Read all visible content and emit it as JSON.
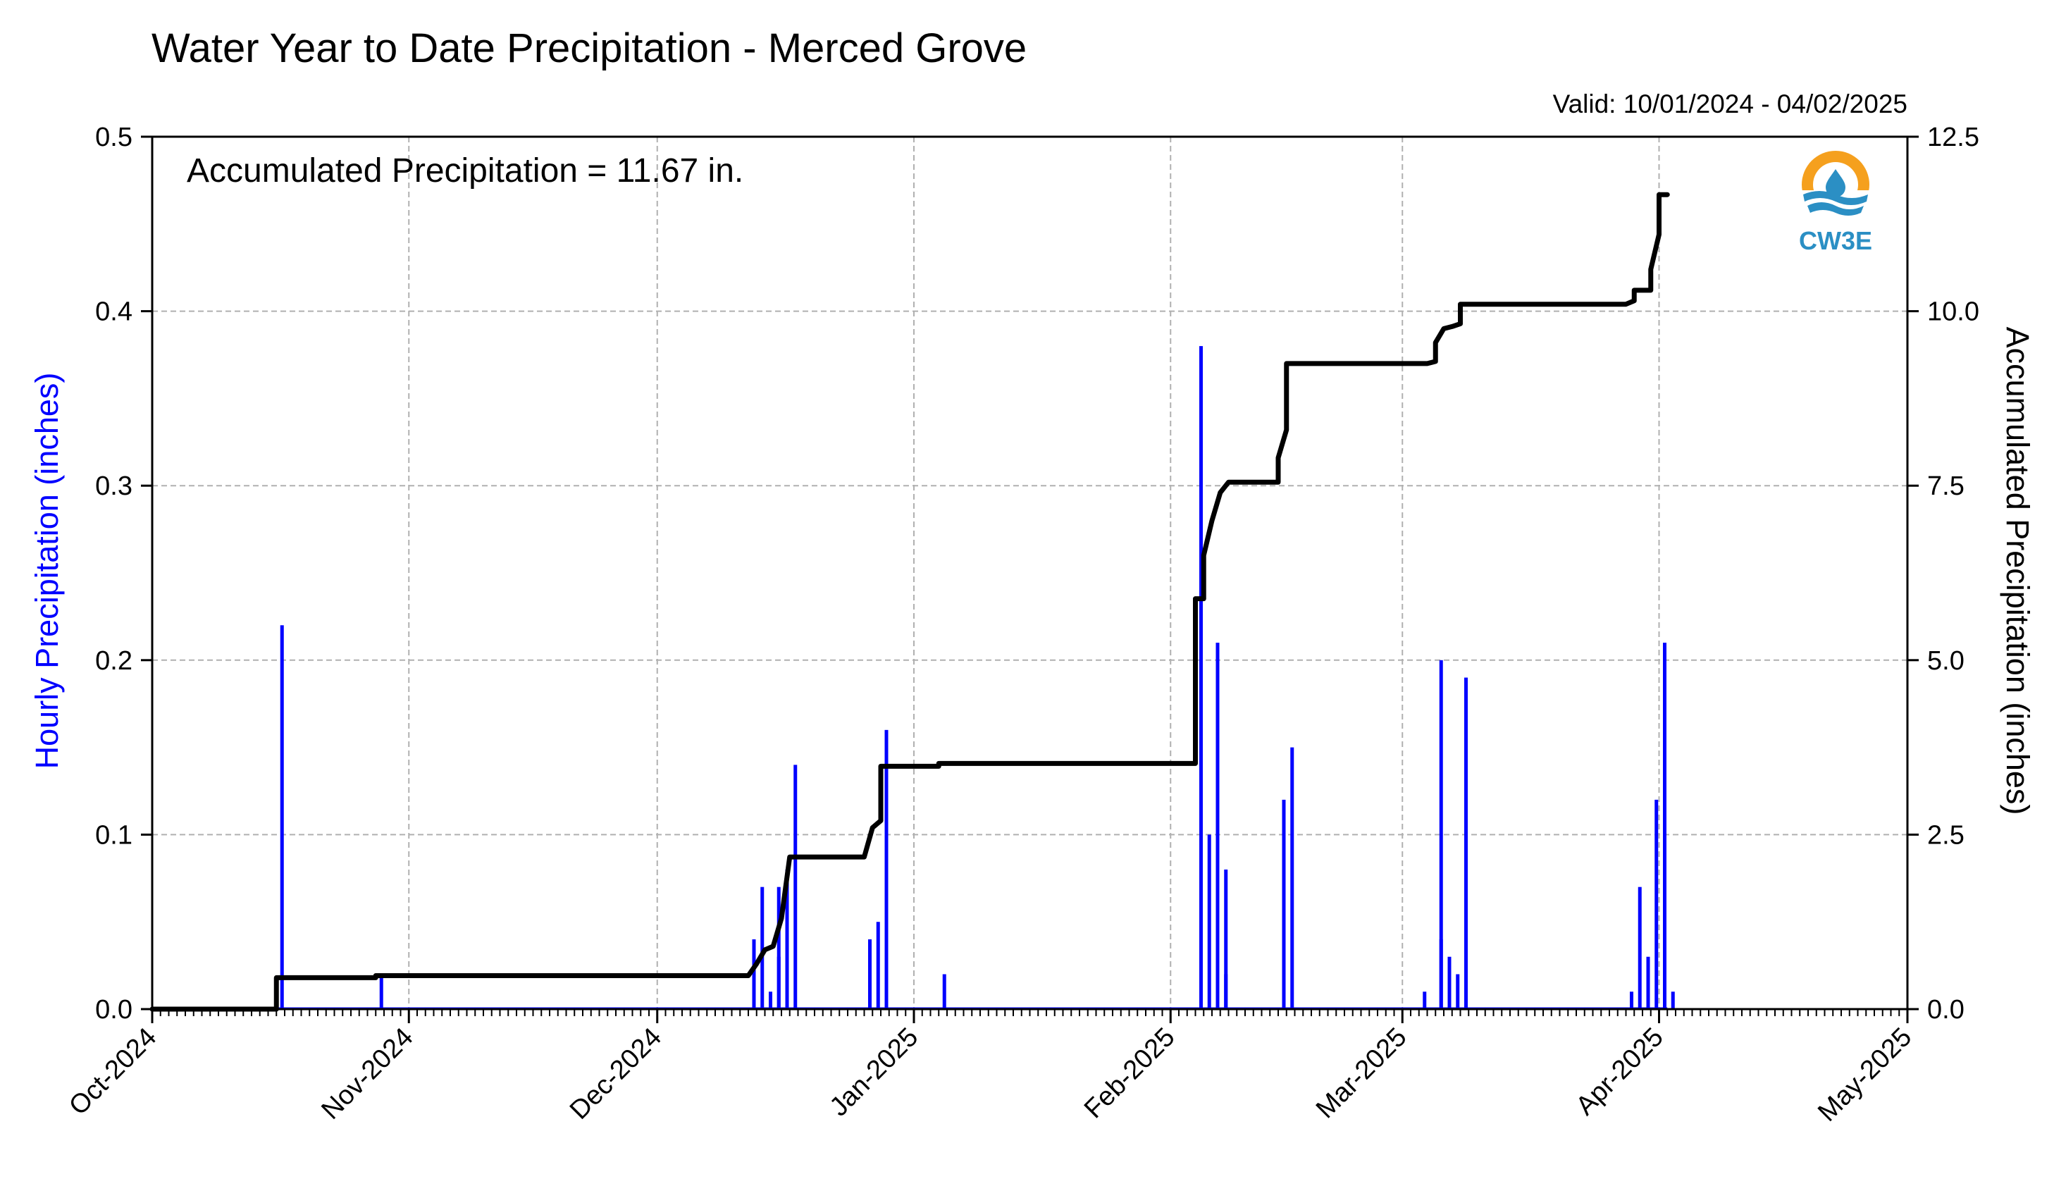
{
  "colors": {
    "hourly_bars": "#0000ff",
    "accumulated_line": "#000000",
    "grid": "#b0b0b0",
    "logo_orange": "#f5a01e",
    "logo_blue": "#2b8fc4"
  },
  "logo": {
    "text": "CW3E",
    "icon": "water-drop-logo-icon"
  },
  "chart_data": {
    "type": "bar",
    "title": "Water Year to Date Precipitation - Merced Grove",
    "subtitle": "Valid: 10/01/2024 - 04/02/2025",
    "annotation": "Accumulated Precipitation = 11.67 in.",
    "xlabel": "",
    "ylabel_left": "Hourly Precipitation (inches)",
    "ylabel_right": "Accumulated Precipitation (inches)",
    "x_domain": [
      "2024-10-01",
      "2025-05-01"
    ],
    "x_ticks": [
      "Oct-2024",
      "Nov-2024",
      "Dec-2024",
      "Jan-2025",
      "Feb-2025",
      "Mar-2025",
      "Apr-2025",
      "May-2025"
    ],
    "ylim_left": [
      0,
      0.5
    ],
    "yticks_left": [
      "0.0",
      "0.1",
      "0.2",
      "0.3",
      "0.4",
      "0.5"
    ],
    "ylim_right": [
      0,
      12.5
    ],
    "yticks_right": [
      "0.0",
      "2.5",
      "5.0",
      "7.5",
      "10.0",
      "12.5"
    ],
    "grid": true,
    "series": [
      {
        "name": "Hourly Precipitation",
        "type": "bar",
        "axis": "left",
        "points": [
          [
            "2024-10-16",
            0.22
          ],
          [
            "2024-10-28",
            0.02
          ],
          [
            "2024-12-12",
            0.04
          ],
          [
            "2024-12-13",
            0.07
          ],
          [
            "2024-12-14",
            0.01
          ],
          [
            "2024-12-15",
            0.03
          ],
          [
            "2024-12-15",
            0.07
          ],
          [
            "2024-12-16",
            0.06
          ],
          [
            "2024-12-16",
            0.08
          ],
          [
            "2024-12-17",
            0.14
          ],
          [
            "2024-12-26",
            0.04
          ],
          [
            "2024-12-27",
            0.05
          ],
          [
            "2024-12-28",
            0.06
          ],
          [
            "2024-12-28",
            0.16
          ],
          [
            "2025-01-04",
            0.02
          ],
          [
            "2025-02-04",
            0.38
          ],
          [
            "2025-02-04",
            0.31
          ],
          [
            "2025-02-05",
            0.1
          ],
          [
            "2025-02-06",
            0.17
          ],
          [
            "2025-02-06",
            0.21
          ],
          [
            "2025-02-07",
            0.02
          ],
          [
            "2025-02-07",
            0.08
          ],
          [
            "2025-02-14",
            0.12
          ],
          [
            "2025-02-15",
            0.15
          ],
          [
            "2025-03-03",
            0.01
          ],
          [
            "2025-03-05",
            0.2
          ],
          [
            "2025-03-05",
            0.04
          ],
          [
            "2025-03-06",
            0.03
          ],
          [
            "2025-03-07",
            0.02
          ],
          [
            "2025-03-08",
            0.19
          ],
          [
            "2025-03-08",
            0.09
          ],
          [
            "2025-03-28",
            0.01
          ],
          [
            "2025-03-29",
            0.07
          ],
          [
            "2025-03-30",
            0.03
          ],
          [
            "2025-03-31",
            0.12
          ],
          [
            "2025-04-01",
            0.21
          ],
          [
            "2025-04-01",
            0.1
          ],
          [
            "2025-04-02",
            0.01
          ]
        ]
      },
      {
        "name": "Accumulated Precipitation",
        "type": "line",
        "axis": "right",
        "points": [
          [
            "2024-10-01",
            0.0
          ],
          [
            "2024-10-16",
            0.0
          ],
          [
            "2024-10-16",
            0.45
          ],
          [
            "2024-10-28",
            0.45
          ],
          [
            "2024-10-28",
            0.48
          ],
          [
            "2024-12-12",
            0.48
          ],
          [
            "2024-12-13",
            0.65
          ],
          [
            "2024-12-14",
            0.85
          ],
          [
            "2024-12-15",
            0.9
          ],
          [
            "2024-12-16",
            1.3
          ],
          [
            "2024-12-17",
            2.18
          ],
          [
            "2024-12-26",
            2.18
          ],
          [
            "2024-12-27",
            2.6
          ],
          [
            "2024-12-28",
            2.7
          ],
          [
            "2024-12-28",
            3.48
          ],
          [
            "2025-01-04",
            3.48
          ],
          [
            "2025-01-04",
            3.52
          ],
          [
            "2025-02-04",
            3.52
          ],
          [
            "2025-02-04",
            5.88
          ],
          [
            "2025-02-05",
            5.88
          ],
          [
            "2025-02-05",
            6.5
          ],
          [
            "2025-02-06",
            7.0
          ],
          [
            "2025-02-07",
            7.4
          ],
          [
            "2025-02-08",
            7.55
          ],
          [
            "2025-02-14",
            7.55
          ],
          [
            "2025-02-14",
            7.9
          ],
          [
            "2025-02-15",
            8.3
          ],
          [
            "2025-02-15",
            9.25
          ],
          [
            "2025-03-04",
            9.25
          ],
          [
            "2025-03-05",
            9.28
          ],
          [
            "2025-03-05",
            9.55
          ],
          [
            "2025-03-06",
            9.75
          ],
          [
            "2025-03-07",
            9.78
          ],
          [
            "2025-03-08",
            9.82
          ],
          [
            "2025-03-08",
            10.1
          ],
          [
            "2025-03-28",
            10.1
          ],
          [
            "2025-03-29",
            10.15
          ],
          [
            "2025-03-29",
            10.3
          ],
          [
            "2025-03-31",
            10.3
          ],
          [
            "2025-03-31",
            10.6
          ],
          [
            "2025-04-01",
            11.1
          ],
          [
            "2025-04-01",
            11.67
          ],
          [
            "2025-04-02",
            11.67
          ]
        ]
      }
    ]
  }
}
